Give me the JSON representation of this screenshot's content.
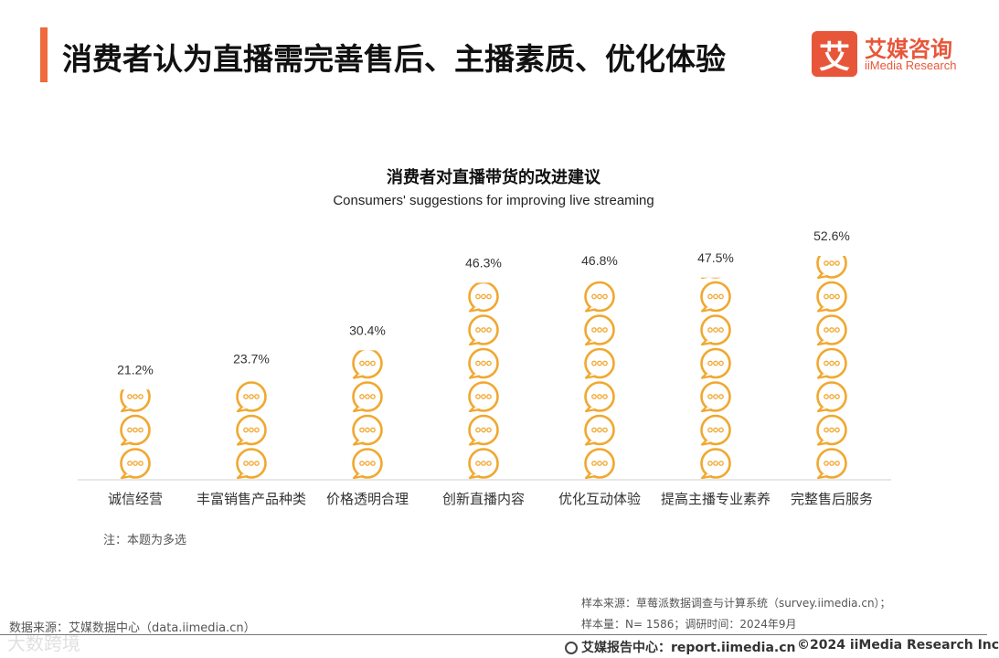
{
  "header": {
    "title": "消费者认为直播需完善售后、主播素质、优化体验",
    "logo_mark": "艾",
    "logo_cn": "艾媒咨询",
    "logo_en": "iiMedia Research"
  },
  "chart_data": {
    "type": "bar",
    "title": "消费者对直播带货的改进建议",
    "subtitle": "Consumers' suggestions for improving live streaming",
    "categories": [
      "诚信经营",
      "丰富销售产品种类",
      "价格透明合理",
      "创新直播内容",
      "优化互动体验",
      "提高主播专业素养",
      "完整售后服务"
    ],
    "values": [
      21.2,
      23.7,
      30.4,
      46.3,
      46.8,
      47.5,
      52.6
    ],
    "value_labels": [
      "21.2%",
      "23.7%",
      "30.4%",
      "46.3%",
      "46.8%",
      "47.5%",
      "52.6%"
    ],
    "unit": "%",
    "mark_style": "stacked speech-bubble icons",
    "icon_color": "#f0a830",
    "ylim": [
      0,
      55
    ],
    "grid": false,
    "legend": "none"
  },
  "notes": {
    "note": "注：本题为多选",
    "sample_source": "样本来源：草莓派数据调查与计算系统（survey.iimedia.cn）；",
    "sample_size": "样本量：N= 1586；调研时间：2024年9月",
    "data_source": "数据来源：艾媒数据中心（data.iimedia.cn）",
    "watermark": "大数跨境"
  },
  "footer": {
    "report_center": "艾媒报告中心：report.iimedia.cn",
    "copyright": "©2024  iiMedia Research  Inc"
  }
}
